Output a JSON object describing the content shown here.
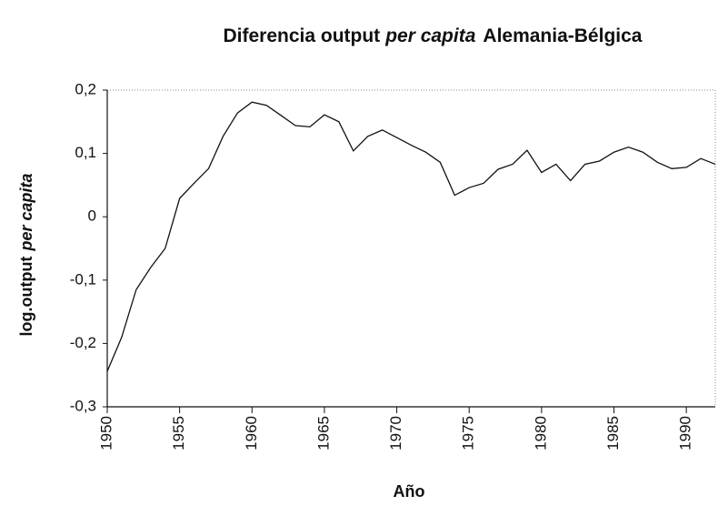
{
  "chart_data": {
    "type": "line",
    "title": [
      "Diferencia output",
      "per capita",
      "Alemania-Bélgica"
    ],
    "ylabel": [
      "log.output",
      "per capita"
    ],
    "xlabel": "Año",
    "x": [
      1950,
      1951,
      1952,
      1953,
      1954,
      1955,
      1956,
      1957,
      1958,
      1959,
      1960,
      1961,
      1962,
      1963,
      1964,
      1965,
      1966,
      1967,
      1968,
      1969,
      1970,
      1971,
      1972,
      1973,
      1974,
      1975,
      1976,
      1977,
      1978,
      1979,
      1980,
      1981,
      1982,
      1983,
      1984,
      1985,
      1986,
      1987,
      1988,
      1989,
      1990,
      1991,
      1992
    ],
    "series": [
      {
        "color": "#111111",
        "values": [
          -0.244,
          -0.19,
          -0.115,
          -0.08,
          -0.05,
          0.029,
          0.053,
          0.076,
          0.127,
          0.164,
          0.181,
          0.176,
          0.16,
          0.144,
          0.142,
          0.161,
          0.15,
          0.104,
          0.127,
          0.137,
          0.125,
          0.113,
          0.102,
          0.086,
          0.034,
          0.046,
          0.053,
          0.075,
          0.083,
          0.105,
          0.07,
          0.083,
          0.057,
          0.083,
          0.088,
          0.102,
          0.11,
          0.102,
          0.086,
          0.076,
          0.078,
          0.092,
          0.083
        ]
      }
    ],
    "xlim": [
      1950,
      1992
    ],
    "xticks": [
      1950,
      1955,
      1960,
      1965,
      1970,
      1975,
      1980,
      1985,
      1990
    ],
    "ylim": [
      -0.3,
      0.2
    ],
    "yticks": [
      {
        "value": -0.3,
        "label": "-0,3"
      },
      {
        "value": -0.2,
        "label": "-0,2"
      },
      {
        "value": -0.1,
        "label": "-0,1"
      },
      0,
      {
        "value": 0.1,
        "label": "0,1"
      },
      {
        "value": 0.2,
        "label": "0,2"
      }
    ],
    "grid": false
  }
}
